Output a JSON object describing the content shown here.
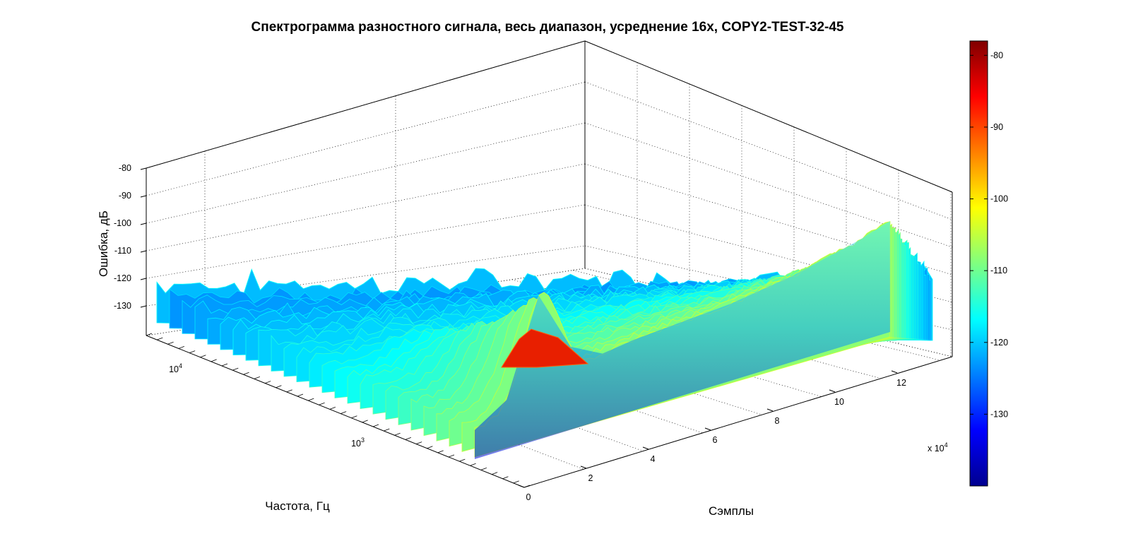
{
  "chart_data": {
    "type": "surface",
    "title": "Спектрограмма разностного сигнала, весь диапазон, усреднение 16x, COPY2-TEST-32-45",
    "xlabel": "Сэмплы",
    "ylabel": "Частота, Гц",
    "zlabel": "Ошибка, дБ",
    "x_ticks": [
      "0",
      "2",
      "4",
      "6",
      "8",
      "10",
      "12"
    ],
    "x_multiplier": "x 10",
    "x_multiplier_exp": "4",
    "y_scale": "log",
    "y_ticks": [
      {
        "base": "10",
        "exp": "3"
      },
      {
        "base": "10",
        "exp": "4"
      }
    ],
    "z_ticks": [
      "-80",
      "-90",
      "-100",
      "-110",
      "-120",
      "-130"
    ],
    "zlim": [
      -140,
      -78
    ],
    "colorbar_ticks": [
      "-80",
      "-90",
      "-100",
      "-110",
      "-120",
      "-130"
    ],
    "colormap": "jet",
    "grid": true,
    "surface_profile_low_freq_edge": [
      [
        0,
        -133
      ],
      [
        1,
        -131
      ],
      [
        2,
        -128
      ],
      [
        3,
        -123
      ],
      [
        4,
        -118
      ],
      [
        5,
        -116
      ],
      [
        6,
        -115
      ],
      [
        7,
        -114
      ],
      [
        8,
        -113
      ],
      [
        9,
        -111
      ],
      [
        10,
        -109
      ],
      [
        11,
        -106
      ],
      [
        12,
        -103
      ],
      [
        13,
        -99
      ]
    ],
    "surface_profile_high_freq_edge": [
      [
        0,
        -131
      ],
      [
        1,
        -131
      ],
      [
        2,
        -130
      ],
      [
        3,
        -130
      ],
      [
        4,
        -129
      ],
      [
        5,
        -128
      ],
      [
        6,
        -127
      ],
      [
        7,
        -126
      ],
      [
        8,
        -125
      ],
      [
        9,
        -125
      ],
      [
        10,
        -124
      ],
      [
        11,
        -123
      ],
      [
        12,
        -122
      ],
      [
        13,
        -120
      ]
    ],
    "peak": {
      "x": 2.0,
      "z": -80
    }
  }
}
